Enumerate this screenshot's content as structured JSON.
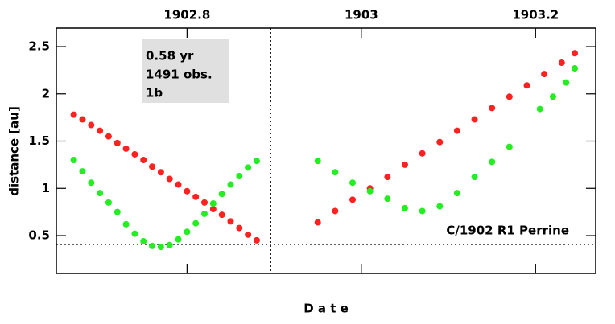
{
  "chart_data": {
    "type": "scatter",
    "xlabel": "D a t e",
    "ylabel": "distance [au]",
    "xlim": [
      1902.65,
      1903.269
    ],
    "ylim": [
      0.1,
      2.696
    ],
    "xticks": [
      1902.8,
      1903,
      1903.2
    ],
    "yticks": [
      0.5,
      1,
      1.5,
      2,
      2.5
    ],
    "reference_lines": {
      "x": 1902.896,
      "y": 0.406
    },
    "info_box": [
      "0.58 yr",
      "1491 obs.",
      "1b"
    ],
    "annotation": "C/1902 R1 Perrine",
    "series": [
      {
        "color": "#ff2020",
        "x": [
          1902.67,
          1902.68,
          1902.69,
          1902.7,
          1902.71,
          1902.72,
          1902.73,
          1902.74,
          1902.75,
          1902.76,
          1902.77,
          1902.78,
          1902.79,
          1902.8,
          1902.81,
          1902.82,
          1902.83,
          1902.84,
          1902.85,
          1902.86,
          1902.87,
          1902.88,
          1902.95,
          1902.97,
          1902.99,
          1903.01,
          1903.03,
          1903.05,
          1903.07,
          1903.09,
          1903.11,
          1903.13,
          1903.15,
          1903.17,
          1903.19,
          1903.21,
          1903.23,
          1903.245
        ],
        "values": [
          1.78,
          1.73,
          1.67,
          1.61,
          1.55,
          1.48,
          1.42,
          1.36,
          1.3,
          1.23,
          1.17,
          1.1,
          1.04,
          0.97,
          0.91,
          0.85,
          0.78,
          0.72,
          0.65,
          0.58,
          0.51,
          0.45,
          0.64,
          0.76,
          0.88,
          1.0,
          1.12,
          1.25,
          1.37,
          1.49,
          1.61,
          1.73,
          1.85,
          1.97,
          2.09,
          2.21,
          2.33,
          2.43
        ]
      },
      {
        "color": "#22ee22",
        "x": [
          1902.67,
          1902.68,
          1902.69,
          1902.7,
          1902.71,
          1902.72,
          1902.73,
          1902.74,
          1902.75,
          1902.76,
          1902.77,
          1902.78,
          1902.79,
          1902.8,
          1902.81,
          1902.82,
          1902.83,
          1902.84,
          1902.85,
          1902.86,
          1902.87,
          1902.88,
          1902.95,
          1902.97,
          1902.99,
          1903.01,
          1903.03,
          1903.05,
          1903.07,
          1903.09,
          1903.11,
          1903.13,
          1903.15,
          1903.17,
          1903.205,
          1903.22,
          1903.235,
          1903.245
        ],
        "values": [
          1.3,
          1.18,
          1.06,
          0.95,
          0.85,
          0.75,
          0.62,
          0.52,
          0.44,
          0.39,
          0.38,
          0.4,
          0.46,
          0.54,
          0.63,
          0.73,
          0.84,
          0.94,
          1.04,
          1.13,
          1.22,
          1.29,
          1.29,
          1.17,
          1.06,
          0.97,
          0.89,
          0.79,
          0.76,
          0.81,
          0.95,
          1.12,
          1.28,
          1.44,
          1.84,
          1.97,
          2.12,
          2.27
        ]
      }
    ]
  }
}
